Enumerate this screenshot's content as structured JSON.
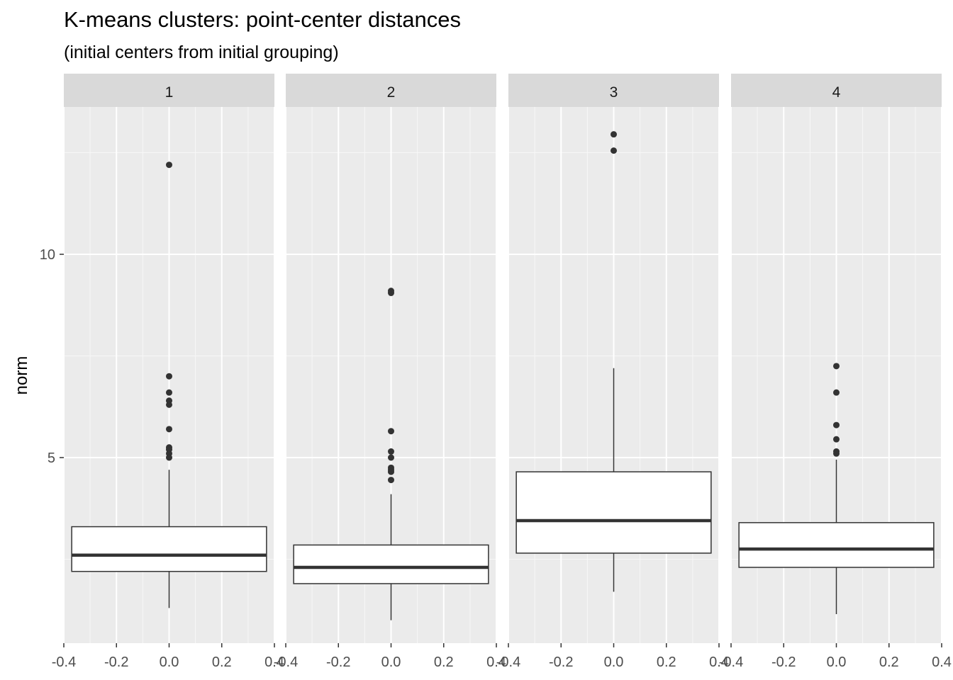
{
  "chart_data": {
    "type": "boxplot",
    "title": "K-means clusters: point-center distances",
    "subtitle": "(initial centers from initial grouping)",
    "xlabel": "",
    "ylabel": "norm",
    "facets": [
      "1",
      "2",
      "3",
      "4"
    ],
    "xlim": [
      -0.4,
      0.4
    ],
    "x_ticks": [
      -0.4,
      -0.2,
      0.0,
      0.2,
      0.4
    ],
    "x_tick_labels": [
      "-0.4",
      "-0.2",
      "0.0",
      "0.2",
      "0.4"
    ],
    "ylim": [
      0.8,
      13.5
    ],
    "y_ticks": [
      5,
      10
    ],
    "y_tick_labels": [
      "5",
      "10"
    ],
    "grid": true,
    "boxes": [
      {
        "facet": "1",
        "x": 0,
        "ymin": 1.3,
        "lower": 2.2,
        "median": 2.6,
        "upper": 3.3,
        "ymax": 4.7,
        "outliers": [
          12.2,
          7.0,
          6.6,
          6.4,
          6.3,
          5.7,
          5.25,
          5.2,
          5.1,
          5.0
        ]
      },
      {
        "facet": "2",
        "x": 0,
        "ymin": 1.0,
        "lower": 1.9,
        "median": 2.3,
        "upper": 2.85,
        "ymax": 4.1,
        "outliers": [
          9.1,
          9.05,
          5.65,
          5.15,
          5.0,
          4.75,
          4.7,
          4.65,
          4.45
        ]
      },
      {
        "facet": "3",
        "x": 0,
        "ymin": 1.7,
        "lower": 2.65,
        "median": 3.45,
        "upper": 4.65,
        "ymax": 7.2,
        "outliers": [
          12.95,
          12.55
        ]
      },
      {
        "facet": "4",
        "x": 0,
        "ymin": 1.15,
        "lower": 2.3,
        "median": 2.75,
        "upper": 3.4,
        "ymax": 4.95,
        "outliers": [
          7.25,
          6.6,
          5.8,
          5.45,
          5.15,
          5.1
        ]
      }
    ]
  }
}
